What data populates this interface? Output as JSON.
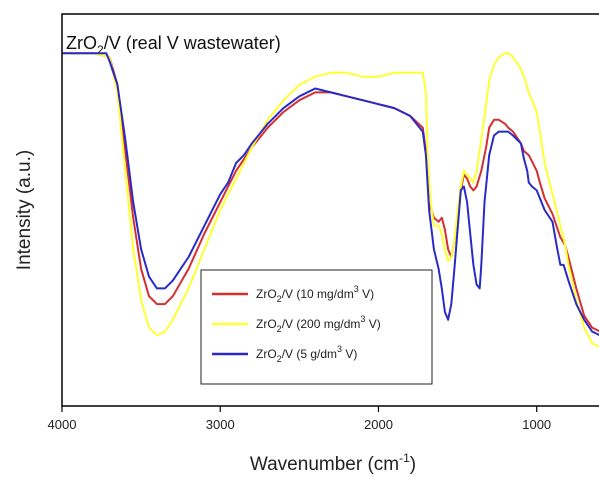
{
  "chart_data": {
    "type": "line",
    "title": {
      "main": "ZrO",
      "sub": "2",
      "rest": "/V (real V wastewater)"
    },
    "xlabel": {
      "main": "Wavenumber (cm",
      "sup": "-1",
      "end": ")"
    },
    "ylabel": "Intensity (a.u.)",
    "xlim": [
      4000,
      600
    ],
    "ylim": [
      0,
      100
    ],
    "x_reversed": true,
    "y_ticks_shown": false,
    "xticks": [
      4000,
      3000,
      2000,
      1000
    ],
    "xtick_labels": [
      "4000",
      "3000",
      "2000",
      "1000"
    ],
    "grid": false,
    "legend_position": "lower-center",
    "series": [
      {
        "name": {
          "pre": "ZrO",
          "sub": "2",
          "mid": "/V (10 mg/dm",
          "sup": "3",
          "post": " V)"
        },
        "color": "#d62f2f",
        "x": [
          4000,
          3800,
          3700,
          3650,
          3600,
          3550,
          3500,
          3450,
          3400,
          3350,
          3300,
          3200,
          3100,
          3000,
          2900,
          2800,
          2700,
          2600,
          2500,
          2400,
          2300,
          2200,
          2100,
          2000,
          1900,
          1800,
          1720,
          1700,
          1680,
          1650,
          1620,
          1600,
          1580,
          1560,
          1540,
          1520,
          1500,
          1480,
          1460,
          1440,
          1420,
          1400,
          1380,
          1350,
          1320,
          1300,
          1270,
          1240,
          1200,
          1180,
          1150,
          1100,
          1080,
          1050,
          1000,
          980,
          950,
          900,
          850,
          820,
          800,
          750,
          700,
          650,
          600
        ],
        "y": [
          90,
          90,
          89,
          82,
          65,
          48,
          35,
          28,
          26,
          26,
          28,
          35,
          44,
          52,
          60,
          66,
          71,
          75,
          78,
          80,
          80,
          79,
          78,
          77,
          76,
          74,
          71,
          65,
          52,
          48,
          47,
          48,
          45,
          40,
          38,
          42,
          48,
          55,
          59,
          58,
          56,
          55,
          56,
          60,
          66,
          71,
          73,
          73,
          72,
          71,
          70,
          67,
          65,
          64,
          60,
          57,
          53,
          49,
          43,
          41,
          38,
          30,
          23,
          20,
          19
        ]
      },
      {
        "name": {
          "pre": "ZrO",
          "sub": "2",
          "mid": "/V (200 mg/dm",
          "sup": "3",
          "post": " V)"
        },
        "color": "#ffff33",
        "x": [
          4000,
          3800,
          3700,
          3650,
          3600,
          3550,
          3500,
          3450,
          3400,
          3350,
          3300,
          3200,
          3100,
          3000,
          2900,
          2800,
          2700,
          2600,
          2500,
          2400,
          2300,
          2200,
          2100,
          2000,
          1900,
          1800,
          1720,
          1700,
          1690,
          1670,
          1650,
          1620,
          1600,
          1580,
          1560,
          1540,
          1520,
          1500,
          1480,
          1460,
          1440,
          1420,
          1400,
          1380,
          1350,
          1320,
          1300,
          1270,
          1240,
          1200,
          1180,
          1150,
          1100,
          1080,
          1050,
          1000,
          980,
          950,
          900,
          850,
          820,
          800,
          750,
          700,
          650,
          600
        ],
        "y": [
          90,
          90,
          89,
          80,
          60,
          40,
          27,
          20,
          18,
          19,
          22,
          30,
          40,
          50,
          58,
          66,
          73,
          78,
          82,
          84,
          85,
          85,
          84,
          84,
          85,
          85,
          85,
          80,
          65,
          52,
          46,
          46,
          44,
          40,
          37,
          38,
          42,
          50,
          56,
          60,
          59,
          58,
          57,
          60,
          68,
          77,
          83,
          87,
          89,
          90,
          90,
          89,
          86,
          84,
          80,
          75,
          70,
          62,
          54,
          46,
          41,
          36,
          27,
          20,
          16,
          15
        ]
      },
      {
        "name": {
          "pre": "ZrO",
          "sub": "2",
          "mid": "/V (5 g/dm",
          "sup": "3",
          "post": " V)"
        },
        "color": "#2a2ac8",
        "x": [
          4000,
          3800,
          3720,
          3700,
          3650,
          3600,
          3550,
          3500,
          3450,
          3400,
          3350,
          3300,
          3200,
          3100,
          3000,
          2950,
          2900,
          2850,
          2800,
          2700,
          2600,
          2500,
          2400,
          2300,
          2200,
          2100,
          2000,
          1900,
          1800,
          1720,
          1700,
          1680,
          1650,
          1620,
          1600,
          1580,
          1560,
          1540,
          1520,
          1500,
          1480,
          1460,
          1440,
          1420,
          1400,
          1380,
          1360,
          1350,
          1330,
          1300,
          1270,
          1240,
          1200,
          1180,
          1150,
          1100,
          1080,
          1060,
          1050,
          1030,
          1000,
          980,
          950,
          900,
          870,
          850,
          830,
          800,
          750,
          700,
          650,
          600
        ],
        "y": [
          90,
          90,
          90,
          88,
          82,
          68,
          52,
          40,
          33,
          30,
          30,
          32,
          38,
          46,
          54,
          57,
          62,
          64,
          67,
          72,
          76,
          79,
          81,
          80,
          79,
          78,
          77,
          76,
          74,
          70,
          64,
          50,
          40,
          35,
          30,
          24,
          22,
          26,
          35,
          45,
          55,
          56,
          52,
          44,
          36,
          31,
          30,
          36,
          52,
          64,
          69,
          70,
          70,
          70,
          69,
          67,
          63,
          60,
          57,
          56,
          55,
          53,
          50,
          47,
          40,
          36,
          36,
          32,
          26,
          22,
          19,
          18
        ]
      }
    ]
  }
}
